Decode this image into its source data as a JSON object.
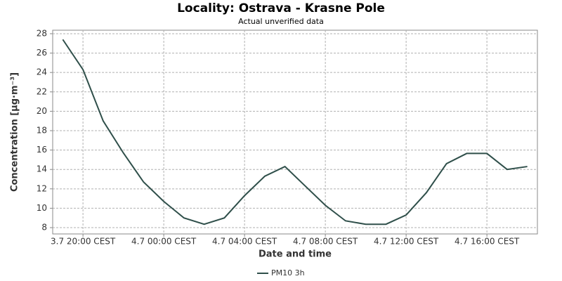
{
  "chart_data": {
    "type": "line",
    "title": "Locality: Ostrava - Krasne Pole",
    "subtitle": "Actual unverified data",
    "x_label": "Date and time",
    "y_label": "Concentration [µg·m⁻³]",
    "x": [
      19,
      20,
      21,
      22,
      23,
      24,
      25,
      26,
      27,
      28,
      29,
      30,
      31,
      32,
      33,
      34,
      35,
      36,
      37,
      38,
      39,
      40,
      41,
      42
    ],
    "series": [
      {
        "name": "PM10 3h",
        "color": "#2f4f4a",
        "values": [
          27.4,
          24.3,
          19.0,
          15.7,
          12.7,
          10.7,
          9.0,
          8.35,
          9.0,
          11.3,
          13.3,
          14.3,
          12.3,
          10.3,
          8.7,
          8.35,
          8.35,
          9.3,
          11.6,
          14.6,
          15.65,
          15.65,
          14.0,
          14.3
        ]
      }
    ],
    "xlim": [
      18.5,
      42.5
    ],
    "xticks": [
      {
        "value": 20,
        "label": "3.7 20:00 CEST"
      },
      {
        "value": 24,
        "label": "4.7 00:00 CEST"
      },
      {
        "value": 28,
        "label": "4.7 04:00 CEST"
      },
      {
        "value": 32,
        "label": "4.7 08:00 CEST"
      },
      {
        "value": 36,
        "label": "4.7 12:00 CEST"
      },
      {
        "value": 40,
        "label": "4.7 16:00 CEST"
      }
    ],
    "ylim": [
      7.35,
      28.36
    ],
    "yticks": [
      8,
      10,
      12,
      14,
      16,
      18,
      20,
      22,
      24,
      26,
      28
    ],
    "grid": true,
    "legend": "bottom"
  }
}
